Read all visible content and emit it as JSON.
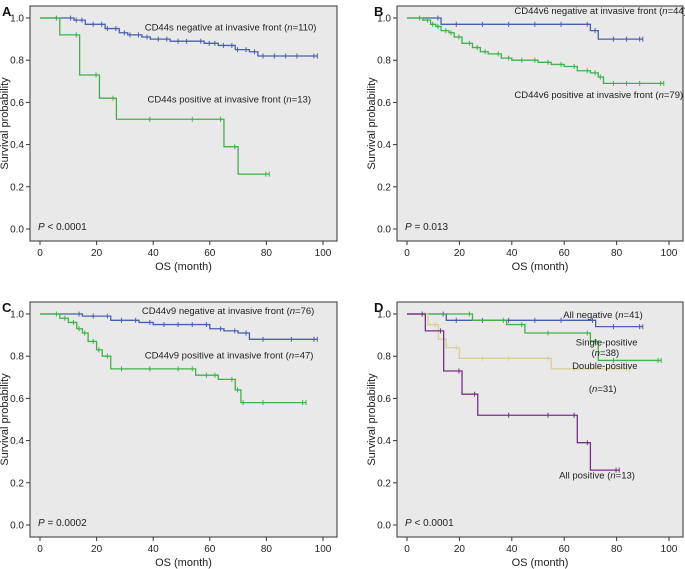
{
  "colors": {
    "blue": "#4a5fb0",
    "green": "#3fb24a",
    "khaki": "#d6cf96",
    "purple": "#7a2e8a",
    "frame": "#e9e9e9"
  },
  "chart_data": [
    {
      "type": "line",
      "step": true,
      "panel": "A",
      "xlabel": "OS (month)",
      "ylabel": "Survival probability",
      "xlim": [
        0,
        100
      ],
      "ylim": [
        0,
        1
      ],
      "xticks": [
        "0",
        "20",
        "40",
        "60",
        "80",
        "100"
      ],
      "yticks": [
        "0.0",
        "0.2",
        "0.4",
        "0.6",
        "0.8",
        "1.0"
      ],
      "pvalue": "P < 0.0001",
      "series": [
        {
          "name": "CD44s negative at invasive front (n=110)",
          "label": "CD44s negative at invasive front (",
          "n": "=110)",
          "color": "blue",
          "x": [
            0,
            7,
            12,
            14,
            16,
            20,
            23,
            25,
            28,
            31,
            33,
            36,
            39,
            43,
            46,
            50,
            53,
            58,
            61,
            63,
            66,
            69,
            71,
            74,
            77,
            80,
            84,
            88,
            92,
            98
          ],
          "y": [
            1.0,
            1.0,
            0.99,
            0.99,
            0.97,
            0.97,
            0.95,
            0.95,
            0.93,
            0.92,
            0.92,
            0.91,
            0.9,
            0.9,
            0.89,
            0.89,
            0.89,
            0.88,
            0.88,
            0.87,
            0.87,
            0.85,
            0.85,
            0.84,
            0.82,
            0.82,
            0.82,
            0.82,
            0.82,
            0.82
          ]
        },
        {
          "name": "CD44s positive at invasive front (n=13)",
          "label": "CD44s positive at invasive front (",
          "n": "=13)",
          "color": "green",
          "x": [
            0,
            7,
            14,
            21,
            27,
            40,
            55,
            65,
            70,
            81
          ],
          "y": [
            1.0,
            0.92,
            0.73,
            0.62,
            0.52,
            0.52,
            0.52,
            0.39,
            0.26,
            0.26
          ]
        }
      ]
    },
    {
      "type": "line",
      "step": true,
      "panel": "B",
      "xlabel": "OS (month)",
      "ylabel": "Survival probability",
      "xlim": [
        0,
        100
      ],
      "ylim": [
        0,
        1
      ],
      "xticks": [
        "0",
        "20",
        "40",
        "60",
        "80",
        "100"
      ],
      "yticks": [
        "0.0",
        "0.2",
        "0.4",
        "0.6",
        "0.8",
        "1.0"
      ],
      "pvalue": "P = 0.013",
      "series": [
        {
          "name": "CD44v6 negative at invasive front (n=44)",
          "label": "CD44v6 negative at invasive front (",
          "n": "=44)",
          "color": "blue",
          "x": [
            0,
            13,
            20,
            30,
            40,
            50,
            60,
            70,
            73,
            80,
            85,
            90
          ],
          "y": [
            1.0,
            0.97,
            0.97,
            0.97,
            0.97,
            0.97,
            0.97,
            0.94,
            0.9,
            0.9,
            0.9,
            0.9
          ]
        },
        {
          "name": "CD44v6 positive at invasive front (n=79)",
          "label": "CD44v6 positive at invasive front (",
          "n": "=79)",
          "color": "green",
          "x": [
            0,
            6,
            9,
            11,
            13,
            16,
            18,
            21,
            25,
            28,
            31,
            36,
            40,
            45,
            50,
            55,
            60,
            65,
            70,
            73,
            75,
            80,
            85,
            90,
            98
          ],
          "y": [
            1.0,
            0.99,
            0.97,
            0.96,
            0.94,
            0.93,
            0.91,
            0.88,
            0.86,
            0.84,
            0.83,
            0.81,
            0.8,
            0.8,
            0.79,
            0.78,
            0.77,
            0.75,
            0.74,
            0.72,
            0.69,
            0.69,
            0.69,
            0.69,
            0.69
          ]
        }
      ]
    },
    {
      "type": "line",
      "step": true,
      "panel": "C",
      "xlabel": "OS (month)",
      "ylabel": "Survival probability",
      "xlim": [
        0,
        100
      ],
      "ylim": [
        0,
        1
      ],
      "xticks": [
        "0",
        "20",
        "40",
        "60",
        "80",
        "100"
      ],
      "yticks": [
        "0.0",
        "0.2",
        "0.4",
        "0.6",
        "0.8",
        "1.0"
      ],
      "pvalue": "P = 0.0002",
      "series": [
        {
          "name": "CD44v9 negative at invasive front (n=76)",
          "label": "CD44v9 negative at invasive front (",
          "n": "=76)",
          "color": "blue",
          "x": [
            0,
            15,
            20,
            25,
            30,
            35,
            40,
            45,
            50,
            55,
            60,
            65,
            70,
            74,
            80,
            90,
            98
          ],
          "y": [
            1.0,
            0.99,
            0.99,
            0.97,
            0.97,
            0.96,
            0.95,
            0.95,
            0.95,
            0.95,
            0.93,
            0.92,
            0.91,
            0.88,
            0.88,
            0.88,
            0.88
          ]
        },
        {
          "name": "CD44v9 positive at invasive front (n=47)",
          "label": "CD44v9 positive at invasive front (",
          "n": "=47)",
          "color": "green",
          "x": [
            0,
            7,
            10,
            13,
            15,
            17,
            20,
            22,
            25,
            30,
            40,
            50,
            55,
            60,
            63,
            69,
            71,
            73,
            80,
            94
          ],
          "y": [
            1.0,
            0.98,
            0.96,
            0.93,
            0.91,
            0.87,
            0.83,
            0.8,
            0.74,
            0.74,
            0.74,
            0.74,
            0.71,
            0.71,
            0.69,
            0.64,
            0.58,
            0.58,
            0.58,
            0.58
          ]
        }
      ]
    },
    {
      "type": "line",
      "step": true,
      "panel": "D",
      "xlabel": "OS (month)",
      "ylabel": "Survival probability",
      "xlim": [
        0,
        100
      ],
      "ylim": [
        0,
        1
      ],
      "xticks": [
        "0",
        "20",
        "40",
        "60",
        "80",
        "100"
      ],
      "yticks": [
        "0.0",
        "0.2",
        "0.4",
        "0.6",
        "0.8",
        "1.0"
      ],
      "pvalue": "P < 0.0001",
      "series": [
        {
          "name": "All negative (n=41)",
          "label": "All negative (",
          "n": "=41)",
          "color": "blue",
          "x": [
            0,
            15,
            20,
            30,
            40,
            50,
            60,
            72,
            80,
            90
          ],
          "y": [
            1.0,
            0.97,
            0.97,
            0.97,
            0.97,
            0.97,
            0.97,
            0.94,
            0.94,
            0.94
          ]
        },
        {
          "name": "Single-positive (n=38)",
          "label": "Single-positive",
          "n": "=38)",
          "color": "green",
          "x": [
            0,
            25,
            38,
            45,
            55,
            70,
            73,
            80,
            97
          ],
          "y": [
            1.0,
            0.97,
            0.95,
            0.91,
            0.91,
            0.87,
            0.78,
            0.78,
            0.78
          ]
        },
        {
          "name": "Double-positive (n=31)",
          "label": "Double-positive",
          "n": "=31)",
          "color": "khaki",
          "x": [
            0,
            8,
            12,
            15,
            20,
            30,
            40,
            55,
            65,
            85
          ],
          "y": [
            1.0,
            0.95,
            0.88,
            0.84,
            0.79,
            0.79,
            0.79,
            0.74,
            0.74,
            0.74
          ]
        },
        {
          "name": "All positive (n=13)",
          "label": "All positive (",
          "n": "=13)",
          "color": "purple",
          "x": [
            0,
            7,
            14,
            21,
            27,
            40,
            55,
            65,
            70,
            81
          ],
          "y": [
            1.0,
            0.92,
            0.73,
            0.62,
            0.52,
            0.52,
            0.52,
            0.39,
            0.26,
            0.26
          ]
        }
      ]
    }
  ]
}
